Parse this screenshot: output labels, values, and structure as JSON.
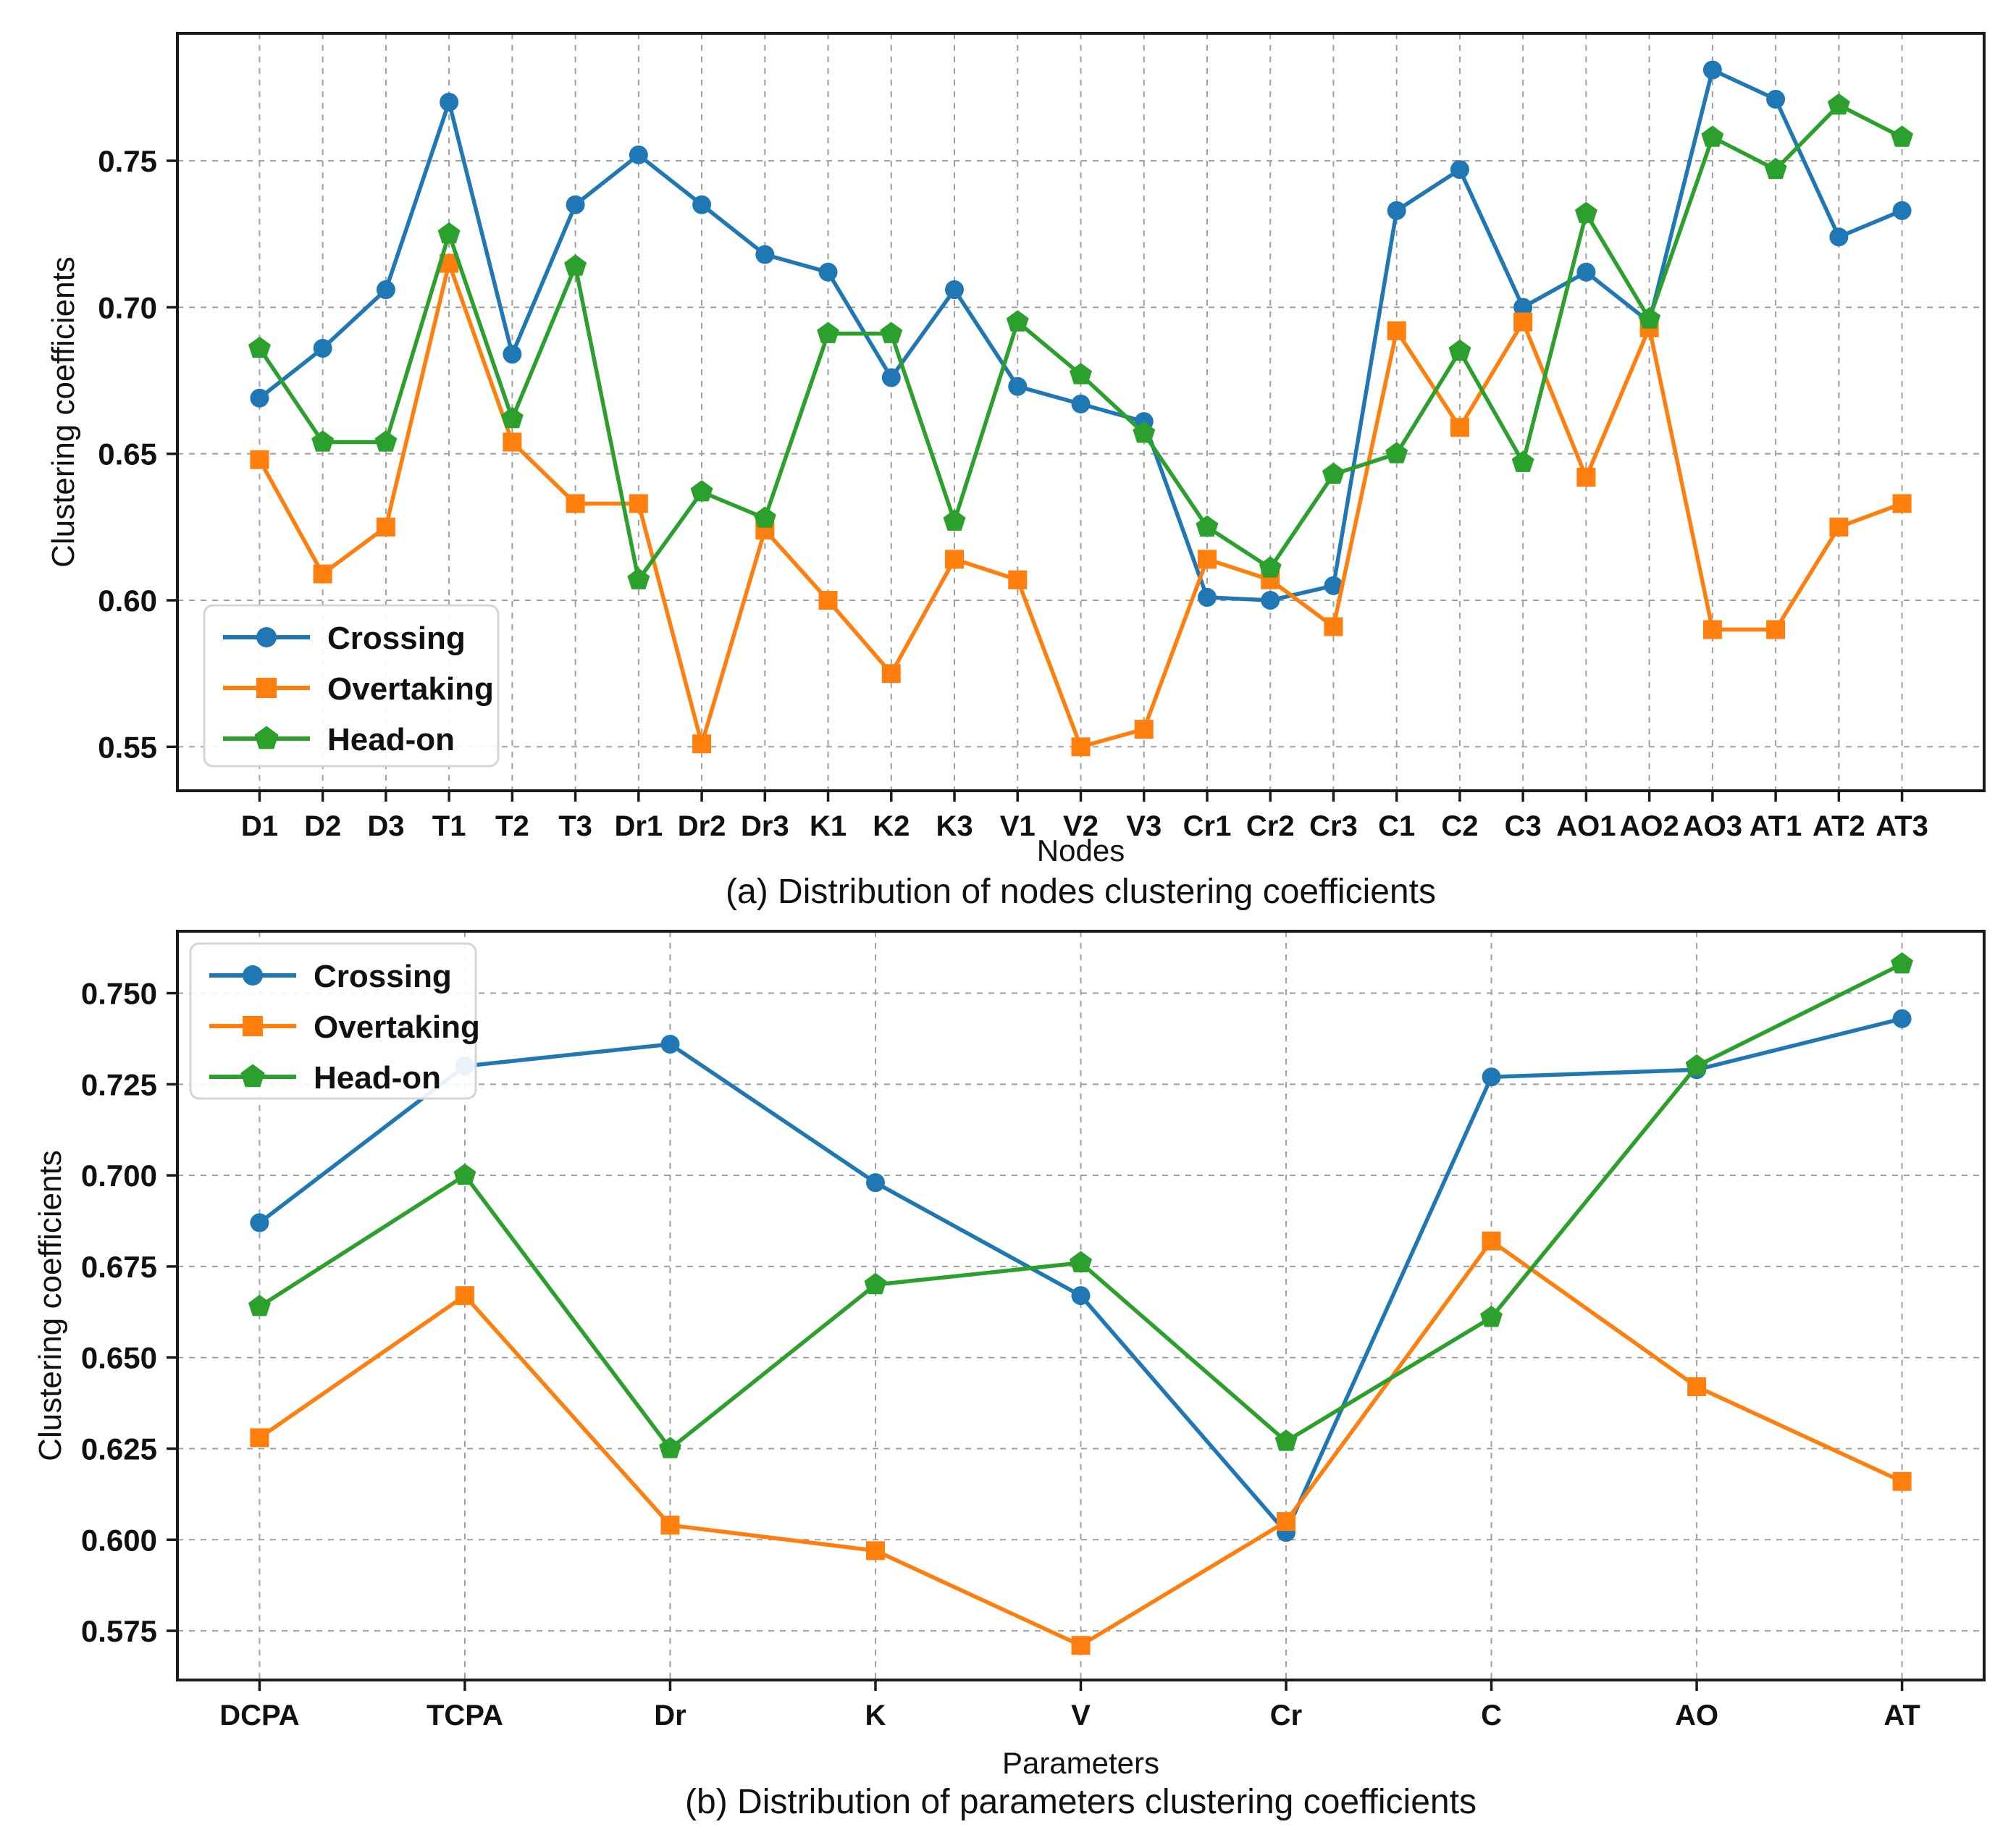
{
  "legend": {
    "entries": [
      "Crossing",
      "Overtaking",
      "Head-on"
    ]
  },
  "colors": {
    "crossing": "#1f77b4",
    "overtaking": "#ff7f0e",
    "headon": "#2ca02c",
    "grid": "#9f9f9f",
    "axis": "#1a1a1a",
    "legend_border": "#d5d5d5"
  },
  "chart_data": [
    {
      "type": "line",
      "title": "(a) Distribution of nodes clustering coefficients",
      "xlabel": "Nodes",
      "ylabel": "Clustering coefficients",
      "grid": true,
      "legend_position": "lower-left",
      "categories": [
        "D1",
        "D2",
        "D3",
        "T1",
        "T2",
        "T3",
        "Dr1",
        "Dr2",
        "Dr3",
        "K1",
        "K2",
        "K3",
        "V1",
        "V2",
        "V3",
        "Cr1",
        "Cr2",
        "Cr3",
        "C1",
        "C2",
        "C3",
        "AO1",
        "AO2",
        "AO3",
        "AT1",
        "AT2",
        "AT3"
      ],
      "yticks": [
        0.55,
        0.6,
        0.65,
        0.7,
        0.75
      ],
      "ytick_labels": [
        "0.55",
        "0.60",
        "0.65",
        "0.70",
        "0.75"
      ],
      "ylim": [
        0.535,
        0.7935
      ],
      "series": [
        {
          "name": "Crossing",
          "color": "#1f77b4",
          "marker": "circle",
          "values": [
            0.669,
            0.686,
            0.706,
            0.77,
            0.684,
            0.735,
            0.752,
            0.735,
            0.718,
            0.712,
            0.676,
            0.706,
            0.673,
            0.667,
            0.661,
            0.601,
            0.6,
            0.605,
            0.733,
            0.747,
            0.7,
            0.712,
            0.695,
            0.781,
            0.771,
            0.724,
            0.733
          ]
        },
        {
          "name": "Overtaking",
          "color": "#ff7f0e",
          "marker": "square",
          "values": [
            0.648,
            0.609,
            0.625,
            0.715,
            0.654,
            0.633,
            0.633,
            0.551,
            0.624,
            0.6,
            0.575,
            0.614,
            0.607,
            0.55,
            0.556,
            0.614,
            0.607,
            0.591,
            0.692,
            0.659,
            0.695,
            0.642,
            0.693,
            0.59,
            0.59,
            0.625,
            0.633
          ]
        },
        {
          "name": "Head-on",
          "color": "#2ca02c",
          "marker": "pentagon",
          "values": [
            0.686,
            0.654,
            0.654,
            0.725,
            0.662,
            0.714,
            0.607,
            0.637,
            0.628,
            0.691,
            0.691,
            0.627,
            0.695,
            0.677,
            0.657,
            0.625,
            0.611,
            0.643,
            0.65,
            0.685,
            0.647,
            0.732,
            0.696,
            0.758,
            0.747,
            0.769,
            0.758
          ]
        }
      ]
    },
    {
      "type": "line",
      "title": "(b) Distribution of parameters clustering coefficients",
      "xlabel": "Parameters",
      "ylabel": "Clustering coefficients",
      "grid": true,
      "legend_position": "upper-left",
      "categories": [
        "DCPA",
        "TCPA",
        "Dr",
        "K",
        "V",
        "Cr",
        "C",
        "AO",
        "AT"
      ],
      "yticks": [
        0.575,
        0.6,
        0.625,
        0.65,
        0.675,
        0.7,
        0.725,
        0.75
      ],
      "ytick_labels": [
        "0.575",
        "0.600",
        "0.625",
        "0.650",
        "0.675",
        "0.700",
        "0.725",
        "0.750"
      ],
      "ylim": [
        0.5615,
        0.767
      ],
      "series": [
        {
          "name": "Crossing",
          "color": "#1f77b4",
          "marker": "circle",
          "values": [
            0.687,
            0.73,
            0.736,
            0.698,
            0.667,
            0.602,
            0.727,
            0.729,
            0.743
          ]
        },
        {
          "name": "Overtaking",
          "color": "#ff7f0e",
          "marker": "square",
          "values": [
            0.628,
            0.667,
            0.604,
            0.597,
            0.571,
            0.605,
            0.682,
            0.642,
            0.616
          ]
        },
        {
          "name": "Head-on",
          "color": "#2ca02c",
          "marker": "pentagon",
          "values": [
            0.664,
            0.7,
            0.625,
            0.67,
            0.676,
            0.627,
            0.661,
            0.73,
            0.758
          ]
        }
      ]
    }
  ]
}
